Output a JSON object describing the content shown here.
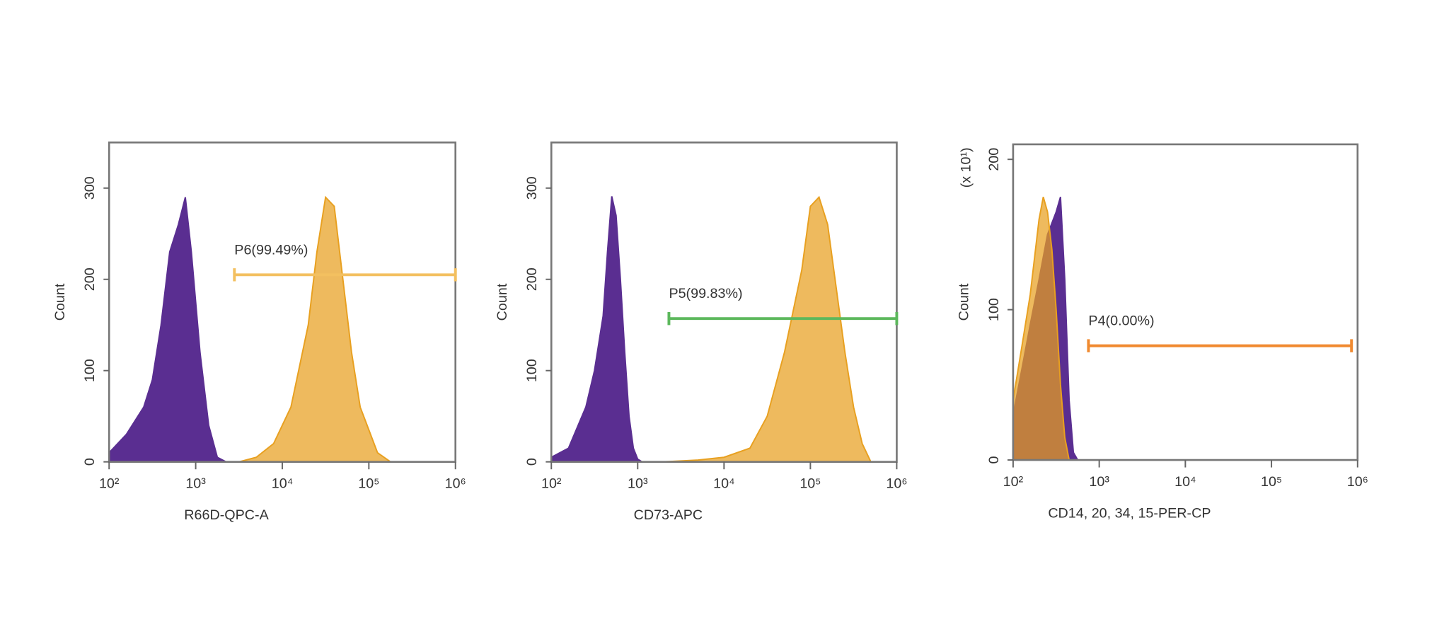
{
  "chart_data": [
    {
      "type": "area",
      "xlabel": "R66D-QPC-A",
      "ylabel": "Count",
      "xscale": "log",
      "xlim": [
        100,
        1000000
      ],
      "xticks": [
        {
          "value": 100,
          "label": "10²"
        },
        {
          "value": 1000,
          "label": "10³"
        },
        {
          "value": 10000,
          "label": "10⁴"
        },
        {
          "value": 100000,
          "label": "10⁵"
        },
        {
          "value": 1000000,
          "label": "10⁶"
        }
      ],
      "ylim": [
        0,
        350
      ],
      "yticks": [
        0,
        100,
        200,
        300
      ],
      "series": [
        {
          "color": "#5a2e91",
          "x": [
            100,
            158,
            251,
            316,
            398,
            501,
            631,
            759,
            891,
            1122,
            1413,
            1778,
            2239
          ],
          "values": [
            10,
            30,
            60,
            90,
            150,
            230,
            260,
            290,
            230,
            120,
            40,
            5,
            0
          ]
        },
        {
          "color": "#e8a020",
          "x": [
            3162,
            5012,
            7943,
            12589,
            19953,
            25119,
            31623,
            39811,
            50119,
            63096,
            79433,
            100000,
            125893,
            177828
          ],
          "values": [
            0,
            5,
            20,
            60,
            150,
            230,
            290,
            280,
            200,
            120,
            60,
            35,
            10,
            0
          ]
        }
      ],
      "gate": {
        "label": "P6(99.49%)",
        "color": "#f3c060",
        "x": [
          2800,
          1000000
        ],
        "y": 205
      }
    },
    {
      "type": "area",
      "xlabel": "CD73-APC",
      "ylabel": "Count",
      "xscale": "log",
      "xlim": [
        100,
        1000000
      ],
      "xticks": [
        {
          "value": 100,
          "label": "10²"
        },
        {
          "value": 1000,
          "label": "10³"
        },
        {
          "value": 10000,
          "label": "10⁴"
        },
        {
          "value": 100000,
          "label": "10⁵"
        },
        {
          "value": 1000000,
          "label": "10⁶"
        }
      ],
      "ylim": [
        0,
        350
      ],
      "yticks": [
        0,
        100,
        200,
        300
      ],
      "series": [
        {
          "color": "#5a2e91",
          "x": [
            100,
            158,
            251,
            316,
            398,
            447,
            501,
            562,
            631,
            708,
            794,
            891,
            1000,
            1122
          ],
          "values": [
            5,
            15,
            60,
            100,
            160,
            230,
            291,
            270,
            200,
            120,
            50,
            15,
            3,
            0
          ]
        },
        {
          "color": "#e8a020",
          "x": [
            2000,
            5012,
            10000,
            19953,
            31623,
            50119,
            79433,
            100000,
            125893,
            158489,
            199526,
            251189,
            316228,
            398107,
            501187
          ],
          "values": [
            0,
            2,
            5,
            15,
            50,
            120,
            210,
            280,
            290,
            260,
            190,
            120,
            60,
            20,
            0
          ]
        }
      ],
      "gate": {
        "label": "P5(99.83%)",
        "color": "#5cb85c",
        "x": [
          2300,
          1000000
        ],
        "y": 157
      }
    },
    {
      "type": "area",
      "xlabel": "CD14, 20, 34, 15-PER-CP",
      "ylabel": "Count",
      "yunit": "(x 10¹)",
      "xscale": "log",
      "xlim": [
        100,
        1000000
      ],
      "xticks": [
        {
          "value": 100,
          "label": "10²"
        },
        {
          "value": 1000,
          "label": "10³"
        },
        {
          "value": 10000,
          "label": "10⁴"
        },
        {
          "value": 100000,
          "label": "10⁵"
        },
        {
          "value": 1000000,
          "label": "10⁶"
        }
      ],
      "ylim": [
        0,
        210
      ],
      "yticks": [
        0,
        100,
        200
      ],
      "series": [
        {
          "color": "#5a2e91",
          "x": [
            100,
            126,
            158,
            200,
            251,
            316,
            355,
            398,
            447,
            501,
            562
          ],
          "values": [
            30,
            60,
            90,
            120,
            150,
            165,
            175,
            120,
            40,
            5,
            0
          ]
        },
        {
          "color": "#e8a020",
          "x": [
            100,
            126,
            158,
            200,
            224,
            251,
            282,
            316,
            355,
            398,
            447
          ],
          "values": [
            40,
            75,
            110,
            160,
            175,
            165,
            140,
            100,
            50,
            15,
            0
          ]
        }
      ],
      "gate": {
        "label": "P4(0.00%)",
        "color": "#f08a30",
        "x": [
          750,
          850000
        ],
        "y": 76
      }
    }
  ]
}
